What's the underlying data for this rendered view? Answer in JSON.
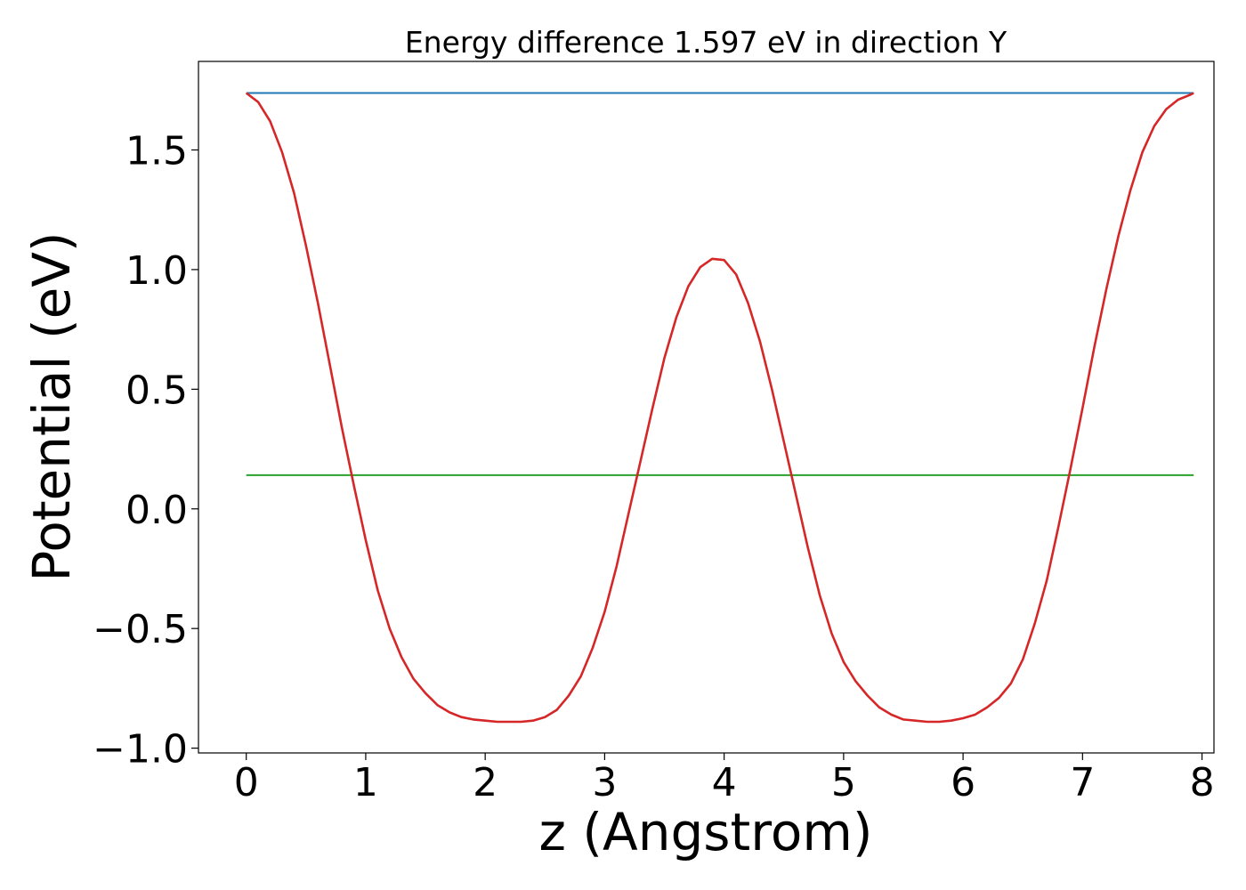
{
  "chart_data": {
    "type": "line",
    "title": "Energy difference 1.597 eV in direction Y",
    "xlabel": "z (Angstrom)",
    "ylabel": "Potential (eV)",
    "xlim": [
      -0.4,
      8.1
    ],
    "ylim": [
      -1.02,
      1.87
    ],
    "x_ticks": [
      0,
      1,
      2,
      3,
      4,
      5,
      6,
      7,
      8
    ],
    "x_tick_labels": [
      "0",
      "1",
      "2",
      "3",
      "4",
      "5",
      "6",
      "7",
      "8"
    ],
    "y_ticks": [
      -1.0,
      -0.5,
      0.0,
      0.5,
      1.0,
      1.5
    ],
    "y_tick_labels": [
      "−1.0",
      "−0.5",
      "0.0",
      "0.5",
      "1.0",
      "1.5"
    ],
    "grid": false,
    "series": [
      {
        "color": "#1f77b4",
        "x": [
          0.0,
          7.93
        ],
        "y": [
          1.738,
          1.738
        ]
      },
      {
        "color": "#2ca02c",
        "x": [
          0.0,
          7.93
        ],
        "y": [
          0.141,
          0.141
        ]
      },
      {
        "color": "#d62728",
        "x": [
          0.0,
          0.1,
          0.2,
          0.3,
          0.4,
          0.5,
          0.6,
          0.7,
          0.8,
          0.9,
          1.0,
          1.1,
          1.2,
          1.3,
          1.4,
          1.5,
          1.6,
          1.7,
          1.8,
          1.9,
          2.0,
          2.1,
          2.2,
          2.3,
          2.4,
          2.5,
          2.6,
          2.7,
          2.8,
          2.9,
          3.0,
          3.1,
          3.2,
          3.3,
          3.4,
          3.5,
          3.6,
          3.7,
          3.8,
          3.9,
          4.0,
          4.1,
          4.2,
          4.3,
          4.4,
          4.5,
          4.6,
          4.7,
          4.8,
          4.9,
          5.0,
          5.1,
          5.2,
          5.3,
          5.4,
          5.5,
          5.6,
          5.7,
          5.8,
          5.9,
          6.0,
          6.1,
          6.2,
          6.3,
          6.4,
          6.5,
          6.6,
          6.7,
          6.8,
          6.9,
          7.0,
          7.1,
          7.2,
          7.3,
          7.4,
          7.5,
          7.6,
          7.7,
          7.8,
          7.9,
          7.93
        ],
        "y": [
          1.738,
          1.7,
          1.62,
          1.49,
          1.32,
          1.1,
          0.86,
          0.6,
          0.34,
          0.1,
          -0.13,
          -0.34,
          -0.5,
          -0.62,
          -0.71,
          -0.77,
          -0.82,
          -0.85,
          -0.87,
          -0.88,
          -0.885,
          -0.89,
          -0.89,
          -0.89,
          -0.885,
          -0.87,
          -0.84,
          -0.78,
          -0.7,
          -0.58,
          -0.43,
          -0.24,
          -0.02,
          0.2,
          0.42,
          0.63,
          0.8,
          0.93,
          1.01,
          1.045,
          1.04,
          0.98,
          0.86,
          0.7,
          0.5,
          0.28,
          0.06,
          -0.16,
          -0.36,
          -0.52,
          -0.64,
          -0.72,
          -0.78,
          -0.83,
          -0.86,
          -0.88,
          -0.885,
          -0.89,
          -0.89,
          -0.885,
          -0.875,
          -0.86,
          -0.83,
          -0.79,
          -0.73,
          -0.63,
          -0.48,
          -0.3,
          -0.07,
          0.17,
          0.42,
          0.68,
          0.92,
          1.14,
          1.33,
          1.49,
          1.6,
          1.67,
          1.71,
          1.73,
          1.738
        ]
      }
    ]
  }
}
